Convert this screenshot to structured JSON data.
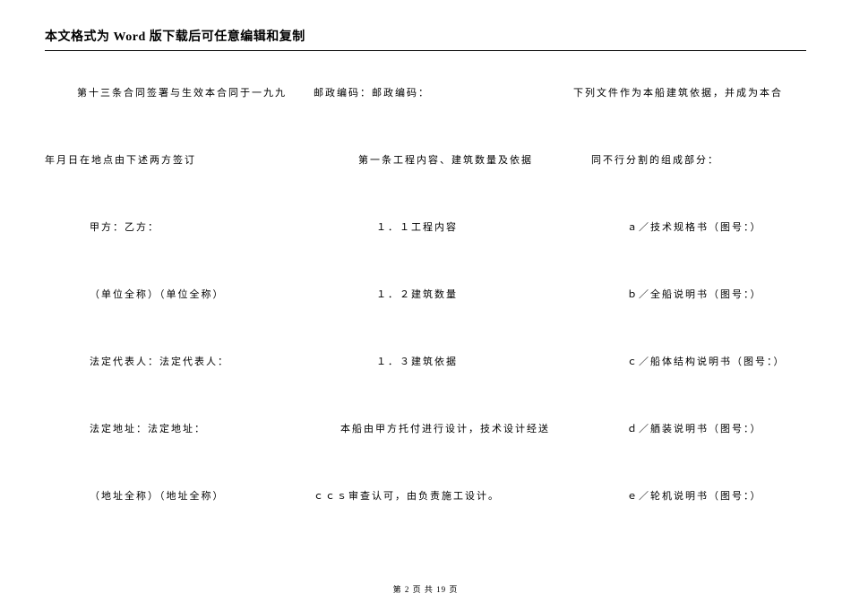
{
  "header": {
    "title": "本文格式为 Word 版下载后可任意编辑和复制"
  },
  "columns": {
    "col1": {
      "r1": "第十三条合同签署与生效本合同于一九九",
      "r2": "年月日在地点由下述两方签订",
      "r3": "甲方：乙方：",
      "r4": "（单位全称）（单位全称）",
      "r5": "法定代表人：法定代表人：",
      "r6": "法定地址：法定地址：",
      "r7": "（地址全称）（地址全称）"
    },
    "col2": {
      "r1": "邮政编码：邮政编码：",
      "r2": "第一条工程内容、建筑数量及依据",
      "r3": "１．１工程内容",
      "r4": "１．２建筑数量",
      "r5": "１．３建筑依据",
      "r6": "本船由甲方托付进行设计，技术设计经送",
      "r7": "ｃｃｓ审查认可，由负责施工设计。"
    },
    "col3": {
      "r1": "下列文件作为本船建筑依据，并成为本合",
      "r2": "同不行分割的组成部分：",
      "r3": "ａ／技术规格书（图号：）",
      "r4": "ｂ／全船说明书（图号：）",
      "r5": "ｃ／船体结构说明书（图号：）",
      "r6": "ｄ／舾装说明书（图号：）",
      "r7": "ｅ／轮机说明书（图号：）"
    }
  },
  "footer": {
    "text": "第 2 页 共 19 页"
  }
}
